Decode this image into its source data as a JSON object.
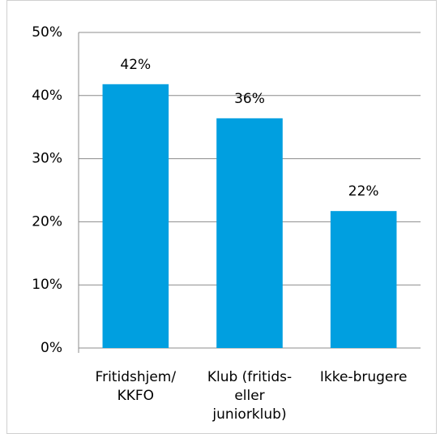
{
  "chart_data": {
    "type": "bar",
    "categories": [
      "Fritidshjem/\nKKFO",
      "Klub (fritids-\neller\njuniorklub)",
      "Ikke-brugere"
    ],
    "values": [
      41.8,
      36.4,
      21.7
    ],
    "value_labels": [
      "42%",
      "36%",
      "22%"
    ],
    "color": "#009fe0",
    "ylim": [
      0,
      50
    ],
    "yticks": [
      {
        "value": 0,
        "label": "0%"
      },
      {
        "value": 10,
        "label": "10%"
      },
      {
        "value": 20,
        "label": "20%"
      },
      {
        "value": 30,
        "label": "30%"
      },
      {
        "value": 40,
        "label": "40%"
      },
      {
        "value": 50,
        "label": "50%"
      }
    ],
    "grid": true
  }
}
